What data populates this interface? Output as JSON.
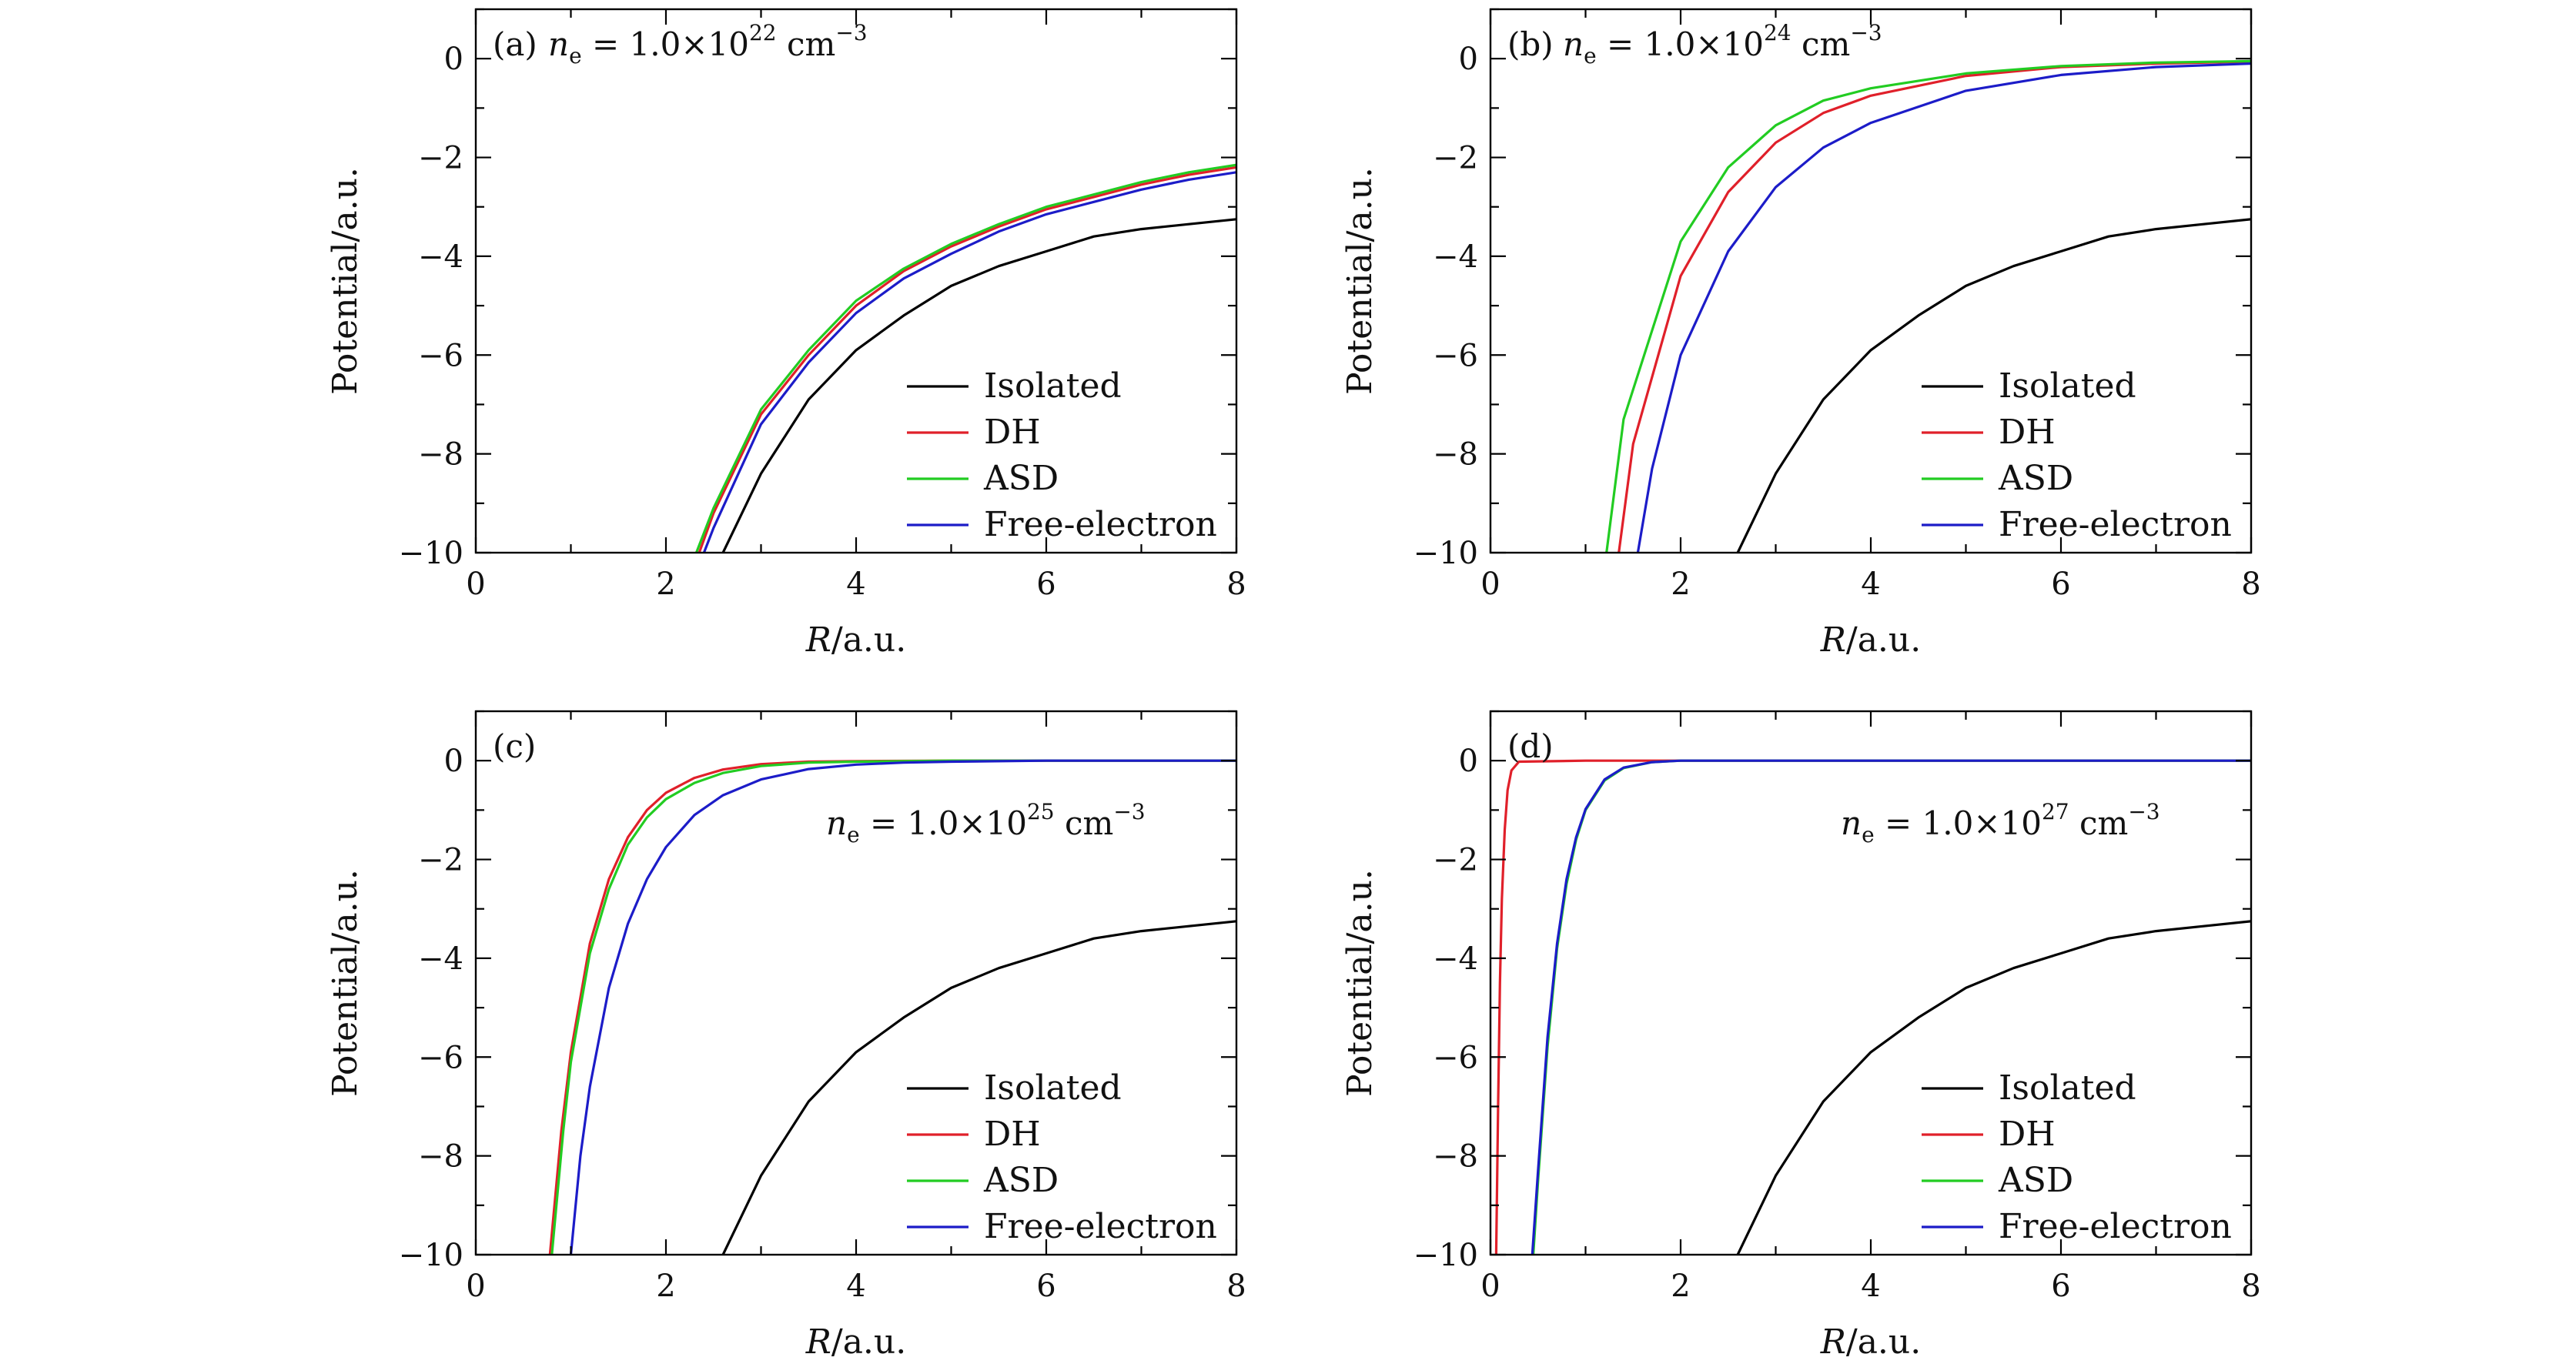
{
  "chart_data": [
    {
      "type": "line",
      "panel": "(a)",
      "annotation": {
        "label": "(a)",
        "prefix": "n",
        "sub": "e",
        "mid": " = 1.0×10",
        "exp": "22",
        "unit": " cm",
        "unit_exp": "−3"
      },
      "xlabel": "R/a.u.",
      "ylabel": "Potential/a.u.",
      "xlim": [
        0,
        8
      ],
      "ylim": [
        -10,
        1
      ],
      "xticks": [
        0,
        2,
        4,
        6,
        8
      ],
      "yticks": [
        0,
        -2,
        -4,
        -6,
        -8,
        -10
      ],
      "xtick_labels": [
        "0",
        "2",
        "4",
        "6",
        "8"
      ],
      "ytick_labels": [
        "0",
        "−2",
        "−4",
        "−6",
        "−8",
        "−10"
      ],
      "legend_position": "lower-right",
      "series": [
        {
          "name": "Isolated",
          "color": "#000000",
          "x": [
            2.6,
            3.0,
            3.5,
            4.0,
            4.5,
            5.0,
            5.5,
            6.0,
            6.5,
            7.0,
            7.5,
            8.0
          ],
          "y": [
            -10.0,
            -8.4,
            -6.9,
            -5.9,
            -5.2,
            -4.6,
            -4.2,
            -3.9,
            -3.6,
            -3.45,
            -3.35,
            -3.25
          ]
        },
        {
          "name": "DH",
          "color": "#e0202a",
          "x": [
            2.35,
            2.5,
            3.0,
            3.5,
            4.0,
            4.5,
            5.0,
            5.5,
            6.0,
            6.5,
            7.0,
            7.5,
            8.0
          ],
          "y": [
            -10.0,
            -9.2,
            -7.2,
            -6.0,
            -5.0,
            -4.3,
            -3.8,
            -3.4,
            -3.05,
            -2.8,
            -2.55,
            -2.35,
            -2.2
          ]
        },
        {
          "name": "ASD",
          "color": "#22cc22",
          "x": [
            2.32,
            2.5,
            3.0,
            3.5,
            4.0,
            4.5,
            5.0,
            5.5,
            6.0,
            6.5,
            7.0,
            7.5,
            8.0
          ],
          "y": [
            -10.0,
            -9.1,
            -7.1,
            -5.9,
            -4.9,
            -4.25,
            -3.75,
            -3.35,
            -3.0,
            -2.75,
            -2.5,
            -2.3,
            -2.15
          ]
        },
        {
          "name": "Free-electron",
          "color": "#1c1cc8",
          "x": [
            2.4,
            2.5,
            3.0,
            3.5,
            4.0,
            4.5,
            5.0,
            5.5,
            6.0,
            6.5,
            7.0,
            7.5,
            8.0
          ],
          "y": [
            -10.0,
            -9.5,
            -7.4,
            -6.15,
            -5.15,
            -4.45,
            -3.95,
            -3.5,
            -3.15,
            -2.9,
            -2.65,
            -2.45,
            -2.3
          ]
        }
      ]
    },
    {
      "type": "line",
      "panel": "(b)",
      "annotation": {
        "label": "(b)",
        "prefix": "n",
        "sub": "e",
        "mid": " = 1.0×10",
        "exp": "24",
        "unit": " cm",
        "unit_exp": "−3"
      },
      "xlabel": "R/a.u.",
      "ylabel": "Potential/a.u.",
      "xlim": [
        0,
        8
      ],
      "ylim": [
        -10,
        1
      ],
      "xticks": [
        0,
        2,
        4,
        6,
        8
      ],
      "yticks": [
        0,
        -2,
        -4,
        -6,
        -8,
        -10
      ],
      "xtick_labels": [
        "0",
        "2",
        "4",
        "6",
        "8"
      ],
      "ytick_labels": [
        "0",
        "−2",
        "−4",
        "−6",
        "−8",
        "−10"
      ],
      "legend_position": "lower-right",
      "series": [
        {
          "name": "Isolated",
          "color": "#000000",
          "x": [
            2.6,
            3.0,
            3.5,
            4.0,
            4.5,
            5.0,
            5.5,
            6.0,
            6.5,
            7.0,
            7.5,
            8.0
          ],
          "y": [
            -10.0,
            -8.4,
            -6.9,
            -5.9,
            -5.2,
            -4.6,
            -4.2,
            -3.9,
            -3.6,
            -3.45,
            -3.35,
            -3.25
          ]
        },
        {
          "name": "DH",
          "color": "#e0202a",
          "x": [
            1.35,
            1.5,
            2.0,
            2.5,
            3.0,
            3.5,
            4.0,
            5.0,
            6.0,
            7.0,
            8.0
          ],
          "y": [
            -10.0,
            -7.8,
            -4.4,
            -2.7,
            -1.7,
            -1.1,
            -0.75,
            -0.35,
            -0.17,
            -0.1,
            -0.06
          ]
        },
        {
          "name": "ASD",
          "color": "#22cc22",
          "x": [
            1.22,
            1.4,
            2.0,
            2.5,
            3.0,
            3.5,
            4.0,
            5.0,
            6.0,
            7.0,
            8.0
          ],
          "y": [
            -10.0,
            -7.3,
            -3.7,
            -2.2,
            -1.35,
            -0.85,
            -0.6,
            -0.3,
            -0.15,
            -0.08,
            -0.05
          ]
        },
        {
          "name": "Free-electron",
          "color": "#1c1cc8",
          "x": [
            1.55,
            1.7,
            2.0,
            2.5,
            3.0,
            3.5,
            4.0,
            5.0,
            6.0,
            7.0,
            8.0
          ],
          "y": [
            -10.0,
            -8.3,
            -6.0,
            -3.9,
            -2.6,
            -1.8,
            -1.3,
            -0.65,
            -0.33,
            -0.17,
            -0.1
          ]
        }
      ]
    },
    {
      "type": "line",
      "panel": "(c)",
      "annotation": {
        "label": "(c)",
        "prefix": "n",
        "sub": "e",
        "mid": " = 1.0×10",
        "exp": "25",
        "unit": " cm",
        "unit_exp": "−3"
      },
      "xlabel": "R/a.u.",
      "ylabel": "Potential/a.u.",
      "xlim": [
        0,
        8
      ],
      "ylim": [
        -10,
        1
      ],
      "xticks": [
        0,
        2,
        4,
        6,
        8
      ],
      "yticks": [
        0,
        -2,
        -4,
        -6,
        -8,
        -10
      ],
      "xtick_labels": [
        "0",
        "2",
        "4",
        "6",
        "8"
      ],
      "ytick_labels": [
        "0",
        "−2",
        "−4",
        "−6",
        "−8",
        "−10"
      ],
      "legend_position": "lower-right",
      "series": [
        {
          "name": "Isolated",
          "color": "#000000",
          "x": [
            2.6,
            3.0,
            3.5,
            4.0,
            4.5,
            5.0,
            5.5,
            6.0,
            6.5,
            7.0,
            7.5,
            8.0
          ],
          "y": [
            -10.0,
            -8.4,
            -6.9,
            -5.9,
            -5.2,
            -4.6,
            -4.2,
            -3.9,
            -3.6,
            -3.45,
            -3.35,
            -3.25
          ]
        },
        {
          "name": "DH",
          "color": "#e0202a",
          "x": [
            0.78,
            0.9,
            1.0,
            1.2,
            1.4,
            1.6,
            1.8,
            2.0,
            2.3,
            2.6,
            3.0,
            3.5,
            4.0,
            5.0,
            6.0,
            8.0
          ],
          "y": [
            -10.0,
            -7.5,
            -5.9,
            -3.7,
            -2.4,
            -1.55,
            -1.0,
            -0.65,
            -0.35,
            -0.18,
            -0.07,
            -0.02,
            -0.01,
            0.0,
            0.0,
            0.0
          ]
        },
        {
          "name": "ASD",
          "color": "#22cc22",
          "x": [
            0.8,
            0.92,
            1.0,
            1.2,
            1.4,
            1.6,
            1.8,
            2.0,
            2.3,
            2.6,
            3.0,
            3.5,
            4.0,
            5.0,
            6.0,
            8.0
          ],
          "y": [
            -10.0,
            -7.5,
            -6.1,
            -3.9,
            -2.6,
            -1.7,
            -1.15,
            -0.78,
            -0.45,
            -0.25,
            -0.11,
            -0.04,
            -0.02,
            0.0,
            0.0,
            0.0
          ]
        },
        {
          "name": "Free-electron",
          "color": "#1c1cc8",
          "x": [
            1.0,
            1.1,
            1.2,
            1.4,
            1.6,
            1.8,
            2.0,
            2.3,
            2.6,
            3.0,
            3.5,
            4.0,
            4.5,
            5.0,
            6.0,
            8.0
          ],
          "y": [
            -10.0,
            -8.0,
            -6.6,
            -4.6,
            -3.3,
            -2.4,
            -1.75,
            -1.1,
            -0.7,
            -0.38,
            -0.17,
            -0.08,
            -0.04,
            -0.02,
            0.0,
            0.0
          ]
        }
      ]
    },
    {
      "type": "line",
      "panel": "(d)",
      "annotation": {
        "label": "(d)",
        "prefix": "n",
        "sub": "e",
        "mid": " = 1.0×10",
        "exp": "27",
        "unit": " cm",
        "unit_exp": "−3"
      },
      "xlabel": "R/a.u.",
      "ylabel": "Potential/a.u.",
      "xlim": [
        0,
        8
      ],
      "ylim": [
        -10,
        1
      ],
      "xticks": [
        0,
        2,
        4,
        6,
        8
      ],
      "yticks": [
        0,
        -2,
        -4,
        -6,
        -8,
        -10
      ],
      "xtick_labels": [
        "0",
        "2",
        "4",
        "6",
        "8"
      ],
      "ytick_labels": [
        "0",
        "−2",
        "−4",
        "−6",
        "−8",
        "−10"
      ],
      "legend_position": "lower-right",
      "series": [
        {
          "name": "Isolated",
          "color": "#000000",
          "x": [
            2.6,
            3.0,
            3.5,
            4.0,
            4.5,
            5.0,
            5.5,
            6.0,
            6.5,
            7.0,
            7.5,
            8.0
          ],
          "y": [
            -10.0,
            -8.4,
            -6.9,
            -5.9,
            -5.2,
            -4.6,
            -4.2,
            -3.9,
            -3.6,
            -3.45,
            -3.35,
            -3.25
          ]
        },
        {
          "name": "DH",
          "color": "#e0202a",
          "x": [
            0.06,
            0.08,
            0.1,
            0.12,
            0.15,
            0.18,
            0.22,
            0.3,
            1.0,
            8.0
          ],
          "y": [
            -10.0,
            -7.0,
            -4.5,
            -2.8,
            -1.4,
            -0.6,
            -0.2,
            -0.02,
            0.0,
            0.0
          ]
        },
        {
          "name": "ASD",
          "color": "#22cc22",
          "x": [
            0.45,
            0.5,
            0.6,
            0.7,
            0.8,
            0.9,
            1.0,
            1.2,
            1.4,
            1.7,
            2.0,
            8.0
          ],
          "y": [
            -10.0,
            -8.5,
            -5.8,
            -3.8,
            -2.5,
            -1.6,
            -1.0,
            -0.4,
            -0.15,
            -0.03,
            0.0,
            0.0
          ]
        },
        {
          "name": "Free-electron",
          "color": "#1c1cc8",
          "x": [
            0.44,
            0.5,
            0.6,
            0.7,
            0.8,
            0.9,
            1.0,
            1.2,
            1.4,
            1.7,
            2.0,
            8.0
          ],
          "y": [
            -10.0,
            -8.3,
            -5.6,
            -3.7,
            -2.4,
            -1.55,
            -0.98,
            -0.38,
            -0.14,
            -0.03,
            0.0,
            0.0
          ]
        }
      ]
    }
  ]
}
